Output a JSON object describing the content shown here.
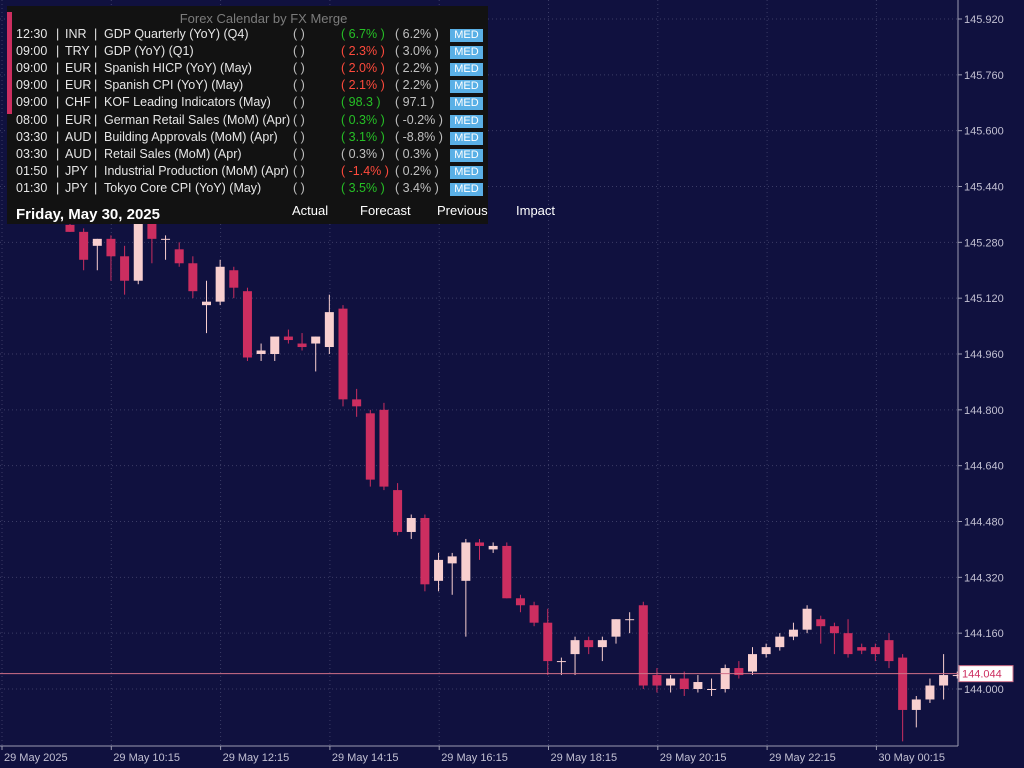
{
  "panel": {
    "title": "Forex Calendar by FX Merge",
    "date": "Friday, May 30, 2025",
    "headers": {
      "actual": "Actual",
      "forecast": "Forecast",
      "previous": "Previous",
      "impact": "Impact"
    },
    "events": [
      {
        "time": "12:30",
        "currency": "INR",
        "event": "GDP Quarterly (YoY) (Q4)",
        "actual": "(   )",
        "forecast": "( 6.7% )",
        "previous": "( 6.2% )",
        "impact": "MED",
        "forecast_color": "green"
      },
      {
        "time": "09:00",
        "currency": "TRY",
        "event": "GDP (YoY) (Q1)",
        "actual": "(   )",
        "forecast": "( 2.3% )",
        "previous": "( 3.0% )",
        "impact": "MED",
        "forecast_color": "red"
      },
      {
        "time": "09:00",
        "currency": "EUR",
        "event": "Spanish HICP (YoY) (May)",
        "actual": "(   )",
        "forecast": "( 2.0% )",
        "previous": "( 2.2% )",
        "impact": "MED",
        "forecast_color": "red"
      },
      {
        "time": "09:00",
        "currency": "EUR",
        "event": "Spanish CPI (YoY) (May)",
        "actual": "(   )",
        "forecast": "( 2.1% )",
        "previous": "( 2.2% )",
        "impact": "MED",
        "forecast_color": "red"
      },
      {
        "time": "09:00",
        "currency": "CHF",
        "event": "KOF Leading Indicators (May)",
        "actual": "(   )",
        "forecast": "( 98.3 )",
        "previous": "( 97.1 )",
        "impact": "MED",
        "forecast_color": "green"
      },
      {
        "time": "08:00",
        "currency": "EUR",
        "event": "German Retail Sales (MoM) (Apr)",
        "actual": "(   )",
        "forecast": "( 0.3% )",
        "previous": "( -0.2% )",
        "impact": "MED",
        "forecast_color": "green"
      },
      {
        "time": "03:30",
        "currency": "AUD",
        "event": "Building Approvals (MoM) (Apr)",
        "actual": "(   )",
        "forecast": "( 3.1% )",
        "previous": "( -8.8% )",
        "impact": "MED",
        "forecast_color": "green"
      },
      {
        "time": "03:30",
        "currency": "AUD",
        "event": "Retail Sales (MoM) (Apr)",
        "actual": "(   )",
        "forecast": "( 0.3% )",
        "previous": "( 0.3% )",
        "impact": "MED",
        "forecast_color": "grey"
      },
      {
        "time": "01:50",
        "currency": "JPY",
        "event": "Industrial Production (MoM) (Apr)",
        "actual": "(   )",
        "forecast": "( -1.4% )",
        "previous": "( 0.2% )",
        "impact": "MED",
        "forecast_color": "red"
      },
      {
        "time": "01:30",
        "currency": "JPY",
        "event": "Tokyo Core CPI (YoY) (May)",
        "actual": "(   )",
        "forecast": "( 3.5% )",
        "previous": "( 3.4% )",
        "impact": "MED",
        "forecast_color": "green"
      }
    ]
  },
  "chart_data": {
    "type": "candlestick",
    "colors": {
      "background": "#10113f",
      "bull": "#f8cfcf",
      "bear": "#cc2e60",
      "grid": "#3b3c66",
      "axis": "#9c9cb0",
      "price_line": "#d07088"
    },
    "ylim": [
      143.92,
      145.96
    ],
    "y_ticks": [
      "145.920",
      "145.760",
      "145.600",
      "145.440",
      "145.280",
      "145.120",
      "144.960",
      "144.800",
      "144.640",
      "144.480",
      "144.320",
      "144.160",
      "144.000"
    ],
    "x_labels": [
      "29 May 2025",
      "29 May 10:15",
      "29 May 12:15",
      "29 May 14:15",
      "29 May 16:15",
      "29 May 18:15",
      "29 May 20:15",
      "29 May 22:15",
      "30 May 00:15"
    ],
    "current_price": "144.044",
    "candles": [
      {
        "o": 145.33,
        "h": 145.35,
        "l": 145.31,
        "c": 145.31
      },
      {
        "o": 145.31,
        "h": 145.32,
        "l": 145.2,
        "c": 145.23
      },
      {
        "o": 145.27,
        "h": 145.29,
        "l": 145.2,
        "c": 145.29
      },
      {
        "o": 145.29,
        "h": 145.3,
        "l": 145.17,
        "c": 145.24
      },
      {
        "o": 145.24,
        "h": 145.27,
        "l": 145.13,
        "c": 145.17
      },
      {
        "o": 145.17,
        "h": 145.36,
        "l": 145.16,
        "c": 145.34
      },
      {
        "o": 145.34,
        "h": 145.36,
        "l": 145.22,
        "c": 145.29
      },
      {
        "o": 145.29,
        "h": 145.3,
        "l": 145.23,
        "c": 145.29
      },
      {
        "o": 145.26,
        "h": 145.28,
        "l": 145.21,
        "c": 145.22
      },
      {
        "o": 145.22,
        "h": 145.24,
        "l": 145.12,
        "c": 145.14
      },
      {
        "o": 145.1,
        "h": 145.17,
        "l": 145.02,
        "c": 145.11
      },
      {
        "o": 145.11,
        "h": 145.23,
        "l": 145.1,
        "c": 145.21
      },
      {
        "o": 145.2,
        "h": 145.21,
        "l": 145.12,
        "c": 145.15
      },
      {
        "o": 145.14,
        "h": 145.15,
        "l": 144.94,
        "c": 144.95
      },
      {
        "o": 144.96,
        "h": 144.99,
        "l": 144.94,
        "c": 144.97
      },
      {
        "o": 144.96,
        "h": 145.0,
        "l": 144.94,
        "c": 145.01
      },
      {
        "o": 145.01,
        "h": 145.03,
        "l": 144.99,
        "c": 145.0
      },
      {
        "o": 144.99,
        "h": 145.02,
        "l": 144.97,
        "c": 144.98
      },
      {
        "o": 144.99,
        "h": 145.01,
        "l": 144.91,
        "c": 145.01
      },
      {
        "o": 144.98,
        "h": 145.13,
        "l": 144.96,
        "c": 145.08
      },
      {
        "o": 145.09,
        "h": 145.1,
        "l": 144.81,
        "c": 144.83
      },
      {
        "o": 144.83,
        "h": 144.86,
        "l": 144.78,
        "c": 144.81
      },
      {
        "o": 144.79,
        "h": 144.8,
        "l": 144.58,
        "c": 144.6
      },
      {
        "o": 144.8,
        "h": 144.82,
        "l": 144.57,
        "c": 144.58
      },
      {
        "o": 144.57,
        "h": 144.59,
        "l": 144.44,
        "c": 144.45
      },
      {
        "o": 144.45,
        "h": 144.5,
        "l": 144.43,
        "c": 144.49
      },
      {
        "o": 144.49,
        "h": 144.5,
        "l": 144.28,
        "c": 144.3
      },
      {
        "o": 144.31,
        "h": 144.39,
        "l": 144.28,
        "c": 144.37
      },
      {
        "o": 144.36,
        "h": 144.39,
        "l": 144.27,
        "c": 144.38
      },
      {
        "o": 144.31,
        "h": 144.43,
        "l": 144.15,
        "c": 144.42
      },
      {
        "o": 144.42,
        "h": 144.43,
        "l": 144.37,
        "c": 144.41
      },
      {
        "o": 144.4,
        "h": 144.42,
        "l": 144.39,
        "c": 144.41
      },
      {
        "o": 144.41,
        "h": 144.42,
        "l": 144.26,
        "c": 144.26
      },
      {
        "o": 144.26,
        "h": 144.27,
        "l": 144.22,
        "c": 144.24
      },
      {
        "o": 144.24,
        "h": 144.25,
        "l": 144.18,
        "c": 144.19
      },
      {
        "o": 144.19,
        "h": 144.23,
        "l": 144.04,
        "c": 144.08
      },
      {
        "o": 144.08,
        "h": 144.09,
        "l": 144.04,
        "c": 144.08
      },
      {
        "o": 144.1,
        "h": 144.15,
        "l": 144.04,
        "c": 144.14
      },
      {
        "o": 144.14,
        "h": 144.15,
        "l": 144.1,
        "c": 144.12
      },
      {
        "o": 144.12,
        "h": 144.15,
        "l": 144.08,
        "c": 144.14
      },
      {
        "o": 144.15,
        "h": 144.2,
        "l": 144.13,
        "c": 144.2
      },
      {
        "o": 144.2,
        "h": 144.22,
        "l": 144.16,
        "c": 144.2
      },
      {
        "o": 144.24,
        "h": 144.25,
        "l": 144.0,
        "c": 144.01
      },
      {
        "o": 144.04,
        "h": 144.06,
        "l": 143.99,
        "c": 144.01
      },
      {
        "o": 144.01,
        "h": 144.04,
        "l": 143.99,
        "c": 144.03
      },
      {
        "o": 144.03,
        "h": 144.05,
        "l": 143.98,
        "c": 144.0
      },
      {
        "o": 144.0,
        "h": 144.04,
        "l": 143.99,
        "c": 144.02
      },
      {
        "o": 144.0,
        "h": 144.03,
        "l": 143.98,
        "c": 144.0
      },
      {
        "o": 144.0,
        "h": 144.07,
        "l": 143.99,
        "c": 144.06
      },
      {
        "o": 144.06,
        "h": 144.08,
        "l": 144.03,
        "c": 144.04
      },
      {
        "o": 144.05,
        "h": 144.12,
        "l": 144.04,
        "c": 144.1
      },
      {
        "o": 144.1,
        "h": 144.13,
        "l": 144.09,
        "c": 144.12
      },
      {
        "o": 144.12,
        "h": 144.16,
        "l": 144.11,
        "c": 144.15
      },
      {
        "o": 144.15,
        "h": 144.19,
        "l": 144.14,
        "c": 144.17
      },
      {
        "o": 144.17,
        "h": 144.24,
        "l": 144.16,
        "c": 144.23
      },
      {
        "o": 144.2,
        "h": 144.21,
        "l": 144.13,
        "c": 144.18
      },
      {
        "o": 144.18,
        "h": 144.19,
        "l": 144.1,
        "c": 144.16
      },
      {
        "o": 144.16,
        "h": 144.2,
        "l": 144.09,
        "c": 144.1
      },
      {
        "o": 144.12,
        "h": 144.13,
        "l": 144.1,
        "c": 144.11
      },
      {
        "o": 144.12,
        "h": 144.13,
        "l": 144.08,
        "c": 144.1
      },
      {
        "o": 144.14,
        "h": 144.16,
        "l": 144.06,
        "c": 144.08
      },
      {
        "o": 144.09,
        "h": 144.1,
        "l": 143.85,
        "c": 143.94
      },
      {
        "o": 143.94,
        "h": 143.98,
        "l": 143.89,
        "c": 143.97
      },
      {
        "o": 143.97,
        "h": 144.03,
        "l": 143.96,
        "c": 144.01
      },
      {
        "o": 144.01,
        "h": 144.1,
        "l": 143.97,
        "c": 144.04
      },
      {
        "o": 144.04,
        "h": 144.05,
        "l": 144.03,
        "c": 144.04
      }
    ]
  }
}
